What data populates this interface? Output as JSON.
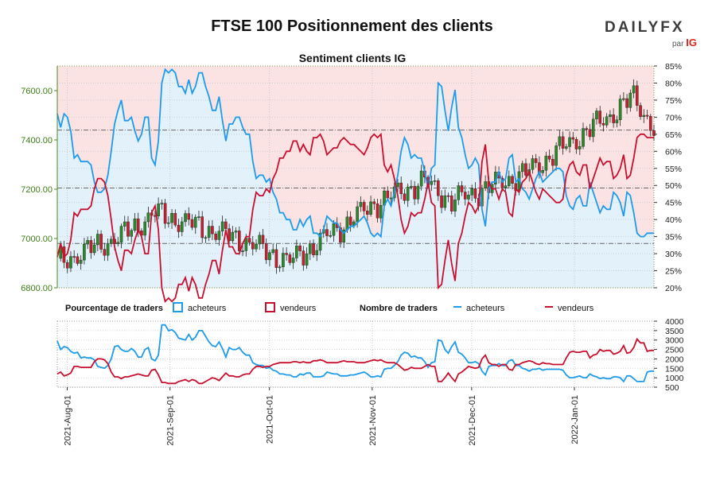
{
  "header": {
    "title": "FTSE 100 Positionnement des clients",
    "brand": "DAILYFX",
    "brand_sub": "par",
    "brand_ig": "IG"
  },
  "legend": {
    "pct_label": "Pourcentage de traders",
    "pct_buyers": "acheteurs",
    "pct_sellers": "vendeurs",
    "count_label": "Nombre de traders",
    "count_buyers": "acheteurs",
    "count_sellers": "vendeurs"
  },
  "chart_data": [
    {
      "type": "line",
      "title": "Sentiment clients IG",
      "description_series": "Candlestick price with client long/short percentage overlay",
      "x_tick_labels": [
        "2021-Aug-01",
        "2021-Sep-01",
        "2021-Oct-01",
        "2021-Nov-01",
        "2021-Dec-01",
        "2022-Jan-01"
      ],
      "x_range": [
        "2021-07-29",
        "2022-01-25"
      ],
      "y_left": {
        "label": "",
        "ticks": [
          "6800.00",
          "7000.00",
          "7200.00",
          "7400.00",
          "7600.00"
        ],
        "ylim": [
          6800,
          7700
        ]
      },
      "y_right": {
        "label": "",
        "ticks": [
          "20%",
          "25%",
          "30%",
          "35%",
          "40%",
          "45%",
          "50%",
          "55%",
          "60%",
          "65%",
          "70%",
          "75%",
          "80%",
          "85%"
        ],
        "ylim": [
          20,
          85
        ]
      },
      "series": [
        {
          "name": "acheteurs",
          "color": "#1e9bea",
          "values": [
            71,
            67,
            71,
            70,
            66,
            58,
            59,
            57,
            57,
            57,
            56,
            51,
            48,
            48,
            49,
            53,
            60,
            68,
            72,
            75,
            69,
            69,
            70,
            66,
            63,
            65,
            70,
            70,
            58,
            56,
            63,
            80,
            84,
            83,
            84,
            83,
            79,
            79,
            77,
            81,
            77,
            79,
            83,
            83,
            79,
            76,
            72,
            72,
            76,
            69,
            63,
            68,
            68,
            70,
            70,
            67,
            65,
            65,
            57,
            52,
            53,
            53,
            51,
            52,
            48,
            46,
            42,
            42,
            40,
            40,
            37,
            37,
            40,
            38,
            40,
            41,
            36,
            36,
            35,
            37,
            41,
            40,
            39,
            39,
            37,
            36,
            37,
            38,
            38,
            39,
            40,
            41,
            39,
            36,
            35,
            36,
            35,
            44,
            46,
            44,
            48,
            53,
            60,
            64,
            62,
            58,
            59,
            58,
            58,
            54,
            49,
            55,
            56,
            80,
            79,
            72,
            66,
            73,
            78,
            67,
            64,
            59,
            55,
            56,
            58,
            56,
            43,
            38,
            49,
            51,
            51,
            54,
            51,
            52,
            58,
            59,
            51,
            52,
            49,
            48,
            46,
            49,
            52,
            54,
            51,
            52,
            53,
            54,
            55,
            55,
            54,
            47,
            44,
            43,
            46,
            47,
            44,
            44,
            51,
            48,
            45,
            42,
            44,
            43,
            43,
            48,
            47,
            45,
            41,
            48,
            47,
            42,
            36,
            35,
            35,
            36,
            36,
            36
          ],
          "mode": "percent"
        },
        {
          "name": "vendeurs",
          "color": "#c80f2e",
          "values": [
            29,
            33,
            29,
            30,
            34,
            42,
            41,
            43,
            43,
            43,
            44,
            49,
            52,
            52,
            51,
            47,
            40,
            32,
            28,
            25,
            31,
            31,
            30,
            34,
            37,
            35,
            30,
            30,
            42,
            44,
            37,
            20,
            16,
            17,
            16,
            17,
            21,
            21,
            23,
            19,
            23,
            21,
            17,
            17,
            21,
            24,
            28,
            28,
            24,
            31,
            37,
            32,
            32,
            30,
            30,
            33,
            35,
            35,
            43,
            48,
            47,
            47,
            49,
            48,
            52,
            54,
            58,
            58,
            60,
            60,
            63,
            63,
            60,
            62,
            60,
            59,
            64,
            64,
            65,
            63,
            59,
            60,
            61,
            61,
            63,
            64,
            63,
            62,
            62,
            61,
            60,
            59,
            61,
            64,
            65,
            64,
            65,
            56,
            54,
            56,
            52,
            47,
            40,
            36,
            38,
            42,
            41,
            42,
            42,
            46,
            51,
            45,
            44,
            20,
            21,
            28,
            34,
            27,
            22,
            33,
            36,
            41,
            45,
            44,
            42,
            44,
            57,
            62,
            51,
            49,
            49,
            46,
            49,
            48,
            42,
            41,
            49,
            48,
            51,
            52,
            54,
            51,
            48,
            46,
            49,
            48,
            47,
            46,
            45,
            45,
            46,
            53,
            56,
            57,
            54,
            53,
            56,
            56,
            49,
            52,
            55,
            58,
            56,
            57,
            57,
            52,
            53,
            55,
            59,
            52,
            53,
            58,
            64,
            65,
            65,
            64,
            64,
            64
          ],
          "mode": "percent"
        }
      ],
      "reference_lines": [
        {
          "axis": "left",
          "value": 7440
        },
        {
          "axis": "left",
          "value": 7205
        },
        {
          "axis": "left",
          "value": 6980
        }
      ]
    },
    {
      "type": "line",
      "title": "",
      "y_right": {
        "ticks": [
          "500",
          "1000",
          "1500",
          "2000",
          "2500",
          "3000",
          "3500",
          "4000"
        ],
        "ylim": [
          500,
          4000
        ]
      },
      "series": [
        {
          "name": "acheteurs",
          "color": "#1e9bea",
          "values": [
            2950,
            2500,
            2650,
            2600,
            2400,
            2300,
            2350,
            2050,
            2100,
            2050,
            2050,
            1950,
            1600,
            1550,
            1500,
            1650,
            2000,
            2650,
            2700,
            2500,
            2400,
            2400,
            2550,
            2400,
            2100,
            2100,
            2500,
            2600,
            2000,
            1900,
            2200,
            3800,
            3800,
            3500,
            3550,
            3400,
            3100,
            3050,
            3000,
            3300,
            3000,
            3150,
            3500,
            3500,
            3200,
            2900,
            2700,
            2650,
            2900,
            2550,
            2100,
            2600,
            2500,
            2500,
            2600,
            2350,
            2200,
            2200,
            1800,
            1700,
            1650,
            1650,
            1500,
            1550,
            1400,
            1350,
            1200,
            1200,
            1150,
            1150,
            1050,
            1050,
            1200,
            1150,
            1250,
            1250,
            1050,
            1050,
            1050,
            1100,
            1300,
            1250,
            1200,
            1200,
            1100,
            1100,
            1100,
            1150,
            1150,
            1200,
            1250,
            1300,
            1200,
            1050,
            1050,
            1100,
            1050,
            1450,
            1500,
            1500,
            1650,
            1850,
            2200,
            2350,
            2300,
            2100,
            2150,
            2050,
            2050,
            1850,
            1550,
            1800,
            1850,
            3000,
            2950,
            2500,
            2300,
            2650,
            2900,
            2350,
            2250,
            2050,
            1800,
            1800,
            1850,
            1750,
            1350,
            1150,
            1600,
            1650,
            1650,
            1750,
            1650,
            1650,
            1900,
            1950,
            1650,
            1650,
            1500,
            1450,
            1350,
            1450,
            1450,
            1500,
            1400,
            1450,
            1450,
            1450,
            1450,
            1450,
            1400,
            1150,
            1000,
            1000,
            1050,
            1100,
            1000,
            1000,
            1200,
            1100,
            1050,
            950,
            1000,
            950,
            950,
            1050,
            1050,
            1000,
            800,
            1100,
            1100,
            950,
            800,
            800,
            800,
            1300,
            1350,
            1350
          ],
          "mode": "count"
        },
        {
          "name": "vendeurs",
          "color": "#c80f2e",
          "values": [
            1200,
            1300,
            1100,
            1150,
            1250,
            1600,
            1600,
            1550,
            1550,
            1550,
            1550,
            1850,
            2000,
            2000,
            1950,
            1750,
            1300,
            1050,
            1050,
            950,
            1050,
            1050,
            1100,
            1150,
            1200,
            1150,
            1100,
            1100,
            1400,
            1450,
            1150,
            750,
            750,
            700,
            700,
            700,
            800,
            850,
            900,
            800,
            900,
            850,
            700,
            700,
            800,
            900,
            1000,
            950,
            850,
            1050,
            1250,
            1100,
            1100,
            1050,
            1050,
            1150,
            1200,
            1200,
            1450,
            1600,
            1600,
            1550,
            1600,
            1600,
            1700,
            1750,
            1800,
            1800,
            1800,
            1800,
            1850,
            1850,
            1800,
            1850,
            1800,
            1800,
            1900,
            1900,
            1950,
            1900,
            1800,
            1800,
            1800,
            1800,
            1850,
            1900,
            1850,
            1850,
            1850,
            1800,
            1800,
            1800,
            1850,
            1900,
            1950,
            1900,
            1950,
            1850,
            1800,
            1800,
            1800,
            1700,
            1550,
            1400,
            1450,
            1550,
            1500,
            1500,
            1500,
            1600,
            1700,
            1600,
            1600,
            800,
            800,
            1000,
            1250,
            1000,
            800,
            1200,
            1300,
            1450,
            1600,
            1550,
            1500,
            1550,
            2000,
            2200,
            1800,
            1700,
            1700,
            1600,
            1700,
            1700,
            1450,
            1400,
            1700,
            1700,
            1800,
            1850,
            1900,
            1850,
            1750,
            1700,
            1800,
            1750,
            1750,
            1700,
            1700,
            1700,
            1700,
            2050,
            2350,
            2400,
            2350,
            2350,
            2400,
            2400,
            2050,
            2200,
            2250,
            2500,
            2400,
            2450,
            2450,
            2250,
            2300,
            2400,
            2700,
            2300,
            2350,
            2600,
            3050,
            2850,
            2850,
            2400,
            2450,
            2450
          ],
          "mode": "count"
        }
      ]
    }
  ]
}
